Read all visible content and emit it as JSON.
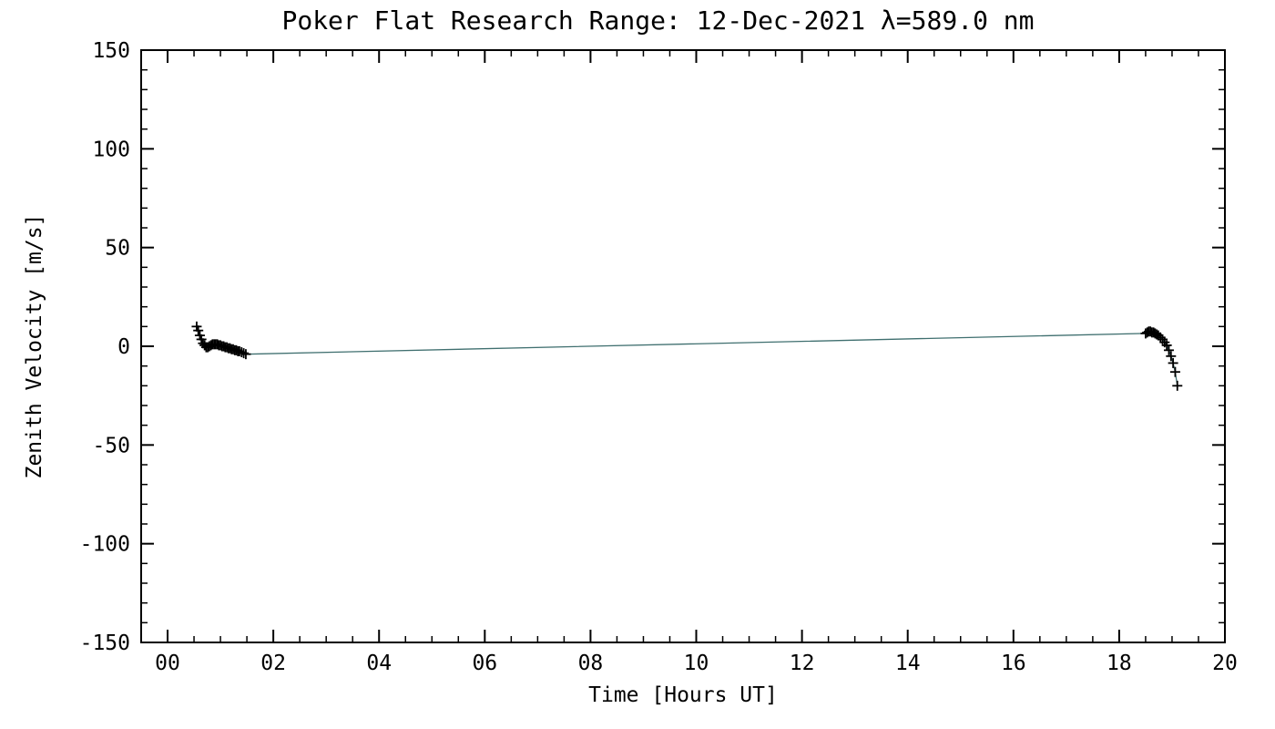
{
  "chart_data": {
    "type": "line",
    "title": "Poker Flat Research Range: 12-Dec-2021 λ=589.0 nm",
    "xlabel": "Time [Hours UT]",
    "ylabel": "Zenith Velocity [m/s]",
    "xlim": [
      -0.5,
      20
    ],
    "ylim": [
      -150,
      150
    ],
    "grid": false,
    "legend": "none",
    "xticks": {
      "values": [
        0,
        2,
        4,
        6,
        8,
        10,
        12,
        14,
        16,
        18,
        20
      ],
      "labels": [
        "00",
        "02",
        "04",
        "06",
        "08",
        "10",
        "12",
        "14",
        "16",
        "18",
        "20"
      ]
    },
    "yticks": {
      "values": [
        -150,
        -100,
        -50,
        0,
        50,
        100,
        150
      ],
      "labels": [
        "-150",
        "-100",
        "-50",
        "0",
        "50",
        "100",
        "150"
      ]
    },
    "x_minor_step": 0.5,
    "y_minor_step": 10,
    "line_color": "#3f6f6f",
    "marker_color": "#000000",
    "marker": "plus",
    "series": [
      {
        "name": "zenith-velocity",
        "points": [
          [
            0.55,
            10
          ],
          [
            0.58,
            8
          ],
          [
            0.61,
            5.5
          ],
          [
            0.64,
            3.5
          ],
          [
            0.67,
            1.5
          ],
          [
            0.7,
            0.5
          ],
          [
            0.73,
            -0.5
          ],
          [
            0.76,
            -0.5
          ],
          [
            0.79,
            0
          ],
          [
            0.82,
            0.5
          ],
          [
            0.85,
            1
          ],
          [
            0.88,
            1
          ],
          [
            0.91,
            1
          ],
          [
            0.94,
            1
          ],
          [
            0.97,
            0.5
          ],
          [
            1.0,
            0.5
          ],
          [
            1.03,
            0
          ],
          [
            1.06,
            0
          ],
          [
            1.09,
            -0.5
          ],
          [
            1.12,
            -0.5
          ],
          [
            1.15,
            -1
          ],
          [
            1.18,
            -1
          ],
          [
            1.21,
            -1.5
          ],
          [
            1.24,
            -1.5
          ],
          [
            1.27,
            -2
          ],
          [
            1.3,
            -2
          ],
          [
            1.33,
            -2.5
          ],
          [
            1.36,
            -2.5
          ],
          [
            1.4,
            -3
          ],
          [
            1.44,
            -3.5
          ],
          [
            1.48,
            -4
          ],
          [
            18.5,
            6.5
          ],
          [
            18.53,
            7
          ],
          [
            18.56,
            7.5
          ],
          [
            18.59,
            7.5
          ],
          [
            18.62,
            7
          ],
          [
            18.65,
            7
          ],
          [
            18.68,
            6.5
          ],
          [
            18.71,
            6
          ],
          [
            18.74,
            5.5
          ],
          [
            18.78,
            4.5
          ],
          [
            18.82,
            3.5
          ],
          [
            18.86,
            2
          ],
          [
            18.9,
            0.5
          ],
          [
            18.94,
            -2
          ],
          [
            18.98,
            -5
          ],
          [
            19.02,
            -8.5
          ],
          [
            19.06,
            -13
          ],
          [
            19.1,
            -20
          ]
        ]
      }
    ]
  }
}
